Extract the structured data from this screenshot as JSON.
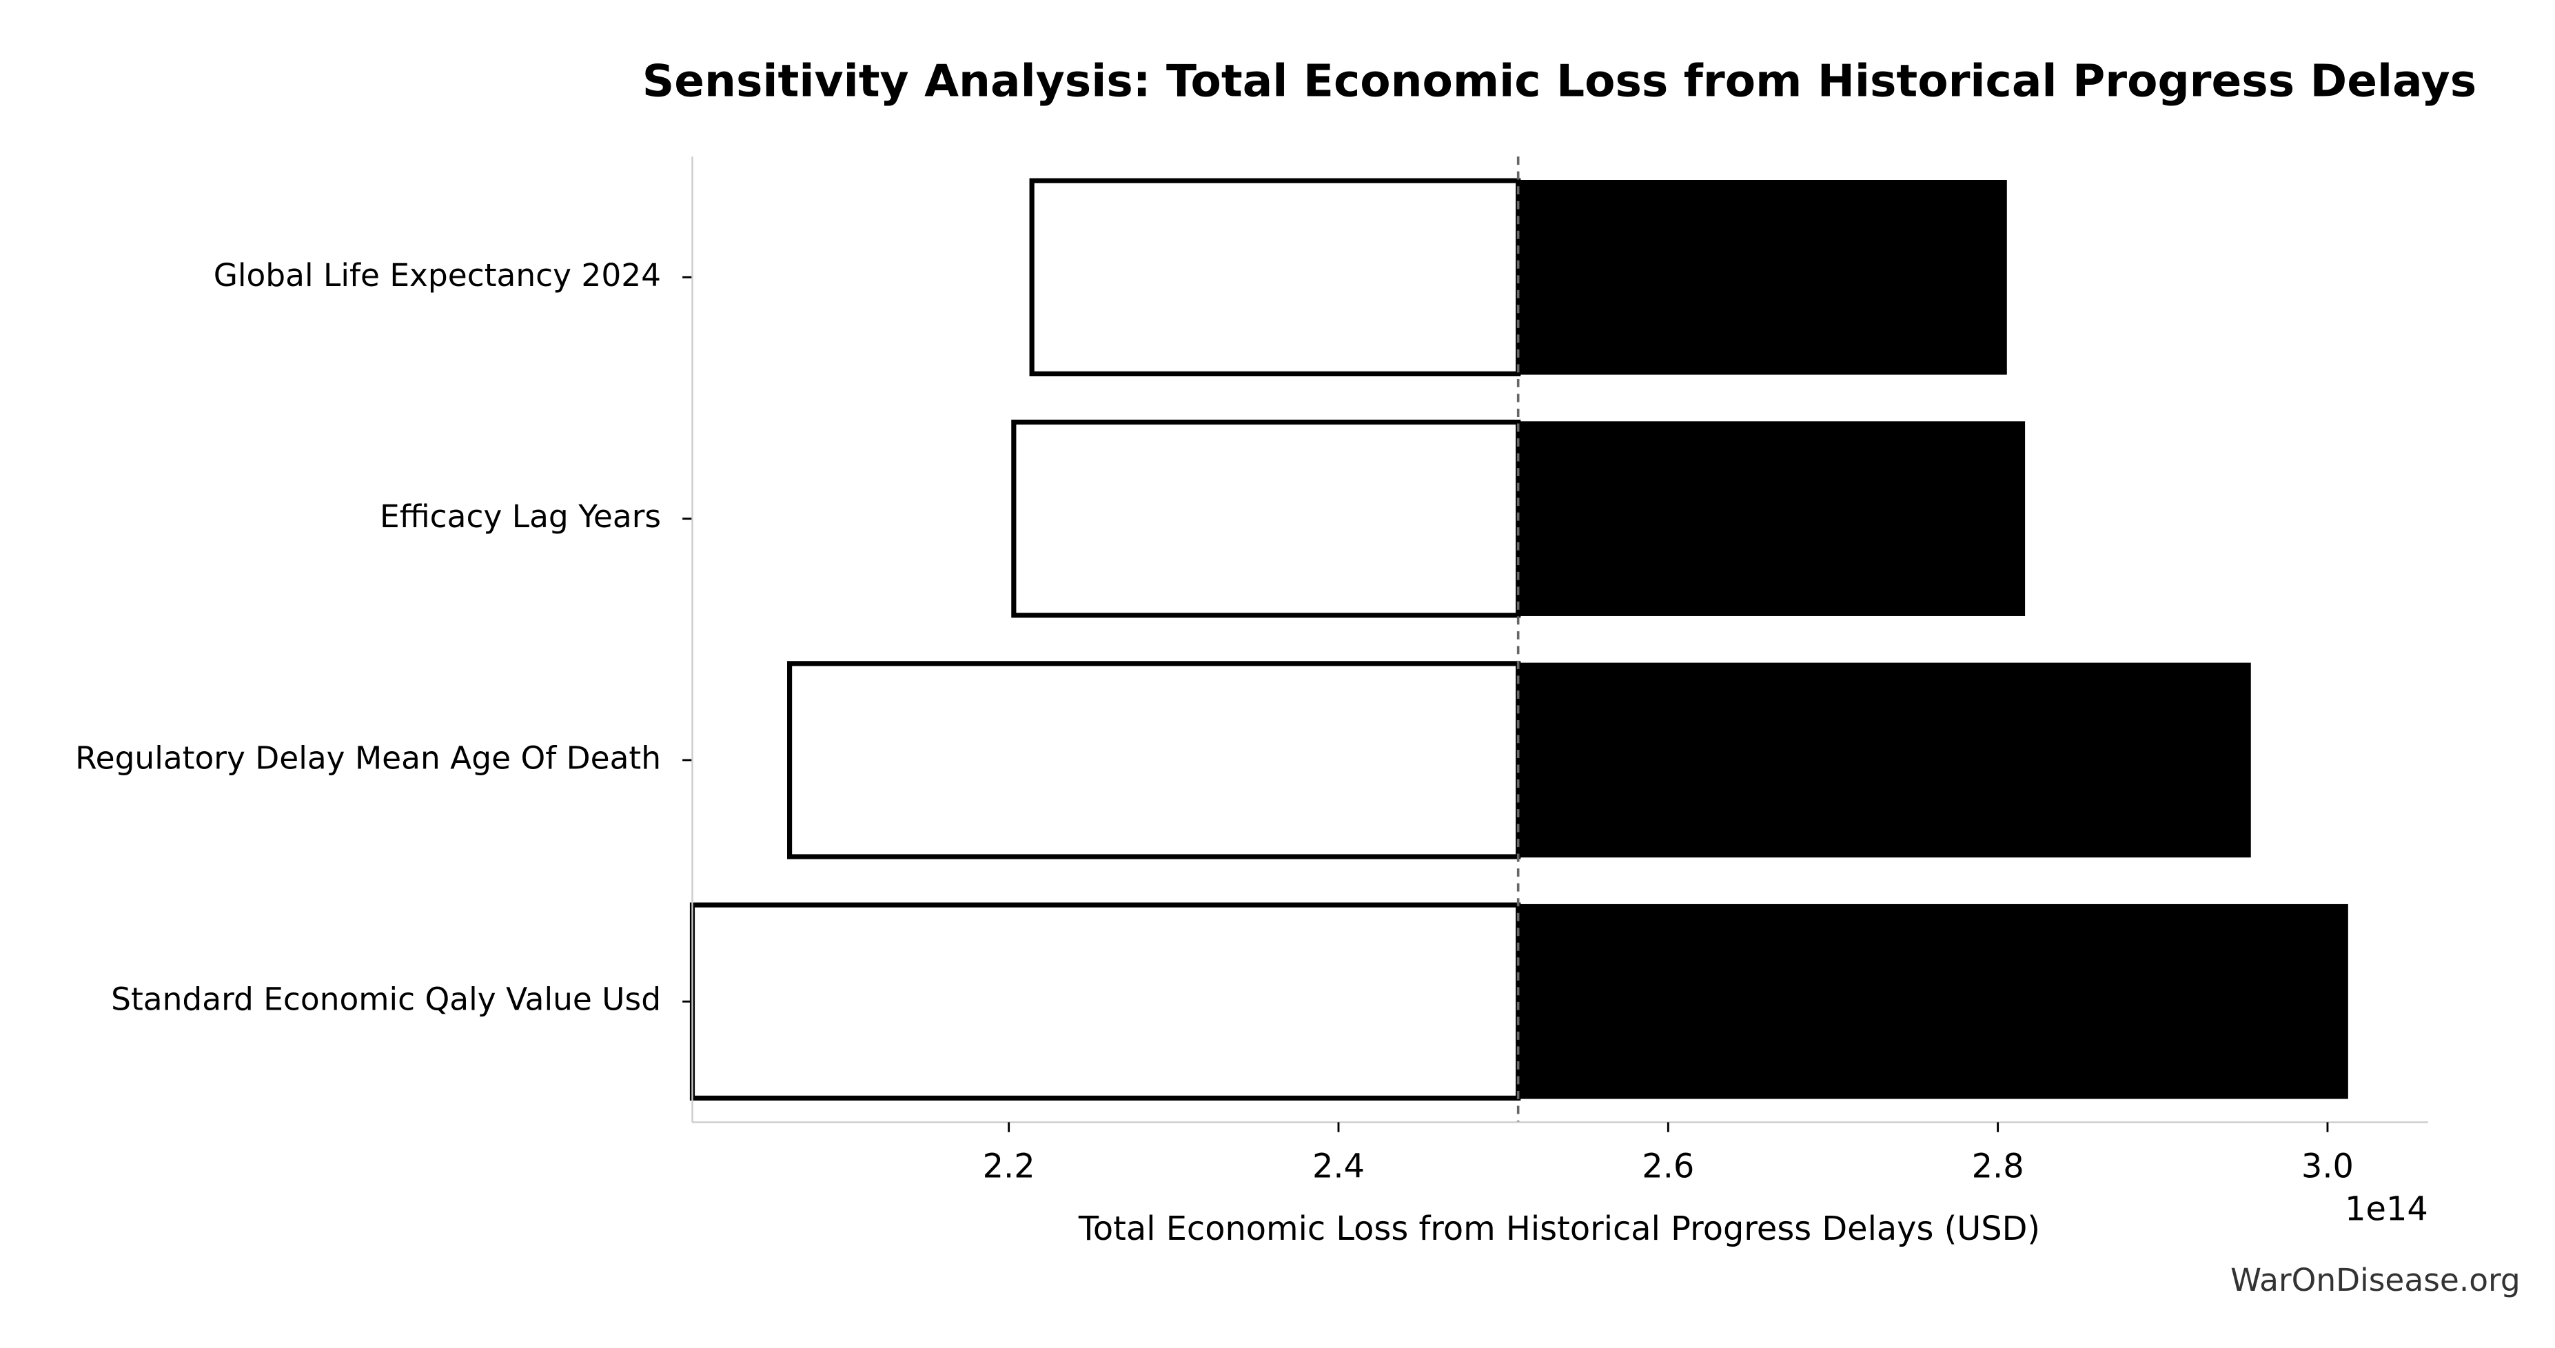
{
  "chart_data": {
    "type": "tornado",
    "title": "Sensitivity Analysis: Total Economic Loss from Historical Progress Delays",
    "xlabel": "Total Economic Loss from Historical Progress Delays (USD)",
    "x_offset_label": "1e14",
    "source": "WarOnDisease.org",
    "categories": [
      "Global Life Expectancy 2024",
      "Efficacy Lag Years",
      "Regulatory Delay Mean Age Of Death",
      "Standard Economic Qaly Value Usd"
    ],
    "baseline": 2.509,
    "low_values": [
      2.214,
      2.203,
      2.067,
      2.008
    ],
    "high_values": [
      2.805,
      2.816,
      2.953,
      3.012
    ],
    "low_color": "#ffffff",
    "high_color": "#000000",
    "xlim": [
      2.008,
      3.061
    ],
    "xticks": [
      2.2,
      2.4,
      2.6,
      2.8,
      {
        "value": 3,
        "label": "3.0"
      }
    ],
    "grid": false
  }
}
